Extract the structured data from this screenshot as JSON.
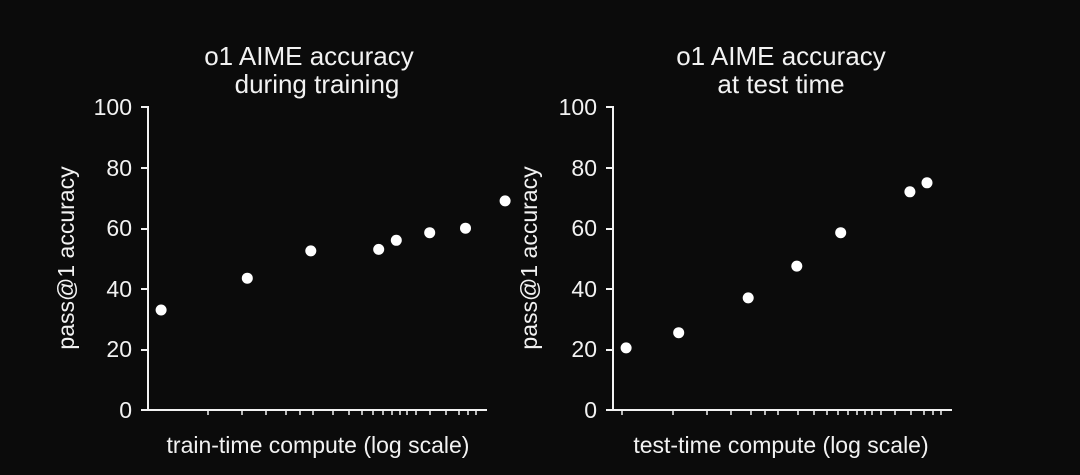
{
  "chart_data": [
    {
      "type": "scatter",
      "title": [
        "o1 AIME accuracy",
        "during training"
      ],
      "xlabel": "train-time compute (log scale)",
      "ylabel": "pass@1 accuracy",
      "ylim": [
        0,
        100
      ],
      "yticks": [
        "0",
        "20",
        "40",
        "60",
        "80",
        "100"
      ],
      "xscale": "log",
      "grid": false,
      "legend": "none",
      "points": [
        {
          "x": 1.2,
          "y": 33
        },
        {
          "x": 4.0,
          "y": 43.5
        },
        {
          "x": 9.7,
          "y": 52.5
        },
        {
          "x": 25,
          "y": 53
        },
        {
          "x": 32,
          "y": 56
        },
        {
          "x": 51,
          "y": 58.5
        },
        {
          "x": 84,
          "y": 60
        },
        {
          "x": 146,
          "y": 69
        }
      ]
    },
    {
      "type": "scatter",
      "title": [
        "o1 AIME accuracy",
        "at test time"
      ],
      "xlabel": "test-time compute (log scale)",
      "ylabel": "pass@1 accuracy",
      "ylim": [
        0,
        100
      ],
      "yticks": [
        "0",
        "20",
        "40",
        "60",
        "80",
        "100"
      ],
      "xscale": "log",
      "grid": false,
      "legend": "none",
      "points": [
        {
          "x": 1.2,
          "y": 20.5
        },
        {
          "x": 2.5,
          "y": 25.5
        },
        {
          "x": 6.6,
          "y": 37
        },
        {
          "x": 13,
          "y": 47.5
        },
        {
          "x": 24,
          "y": 58.5
        },
        {
          "x": 63,
          "y": 72
        },
        {
          "x": 80,
          "y": 75
        }
      ]
    }
  ]
}
